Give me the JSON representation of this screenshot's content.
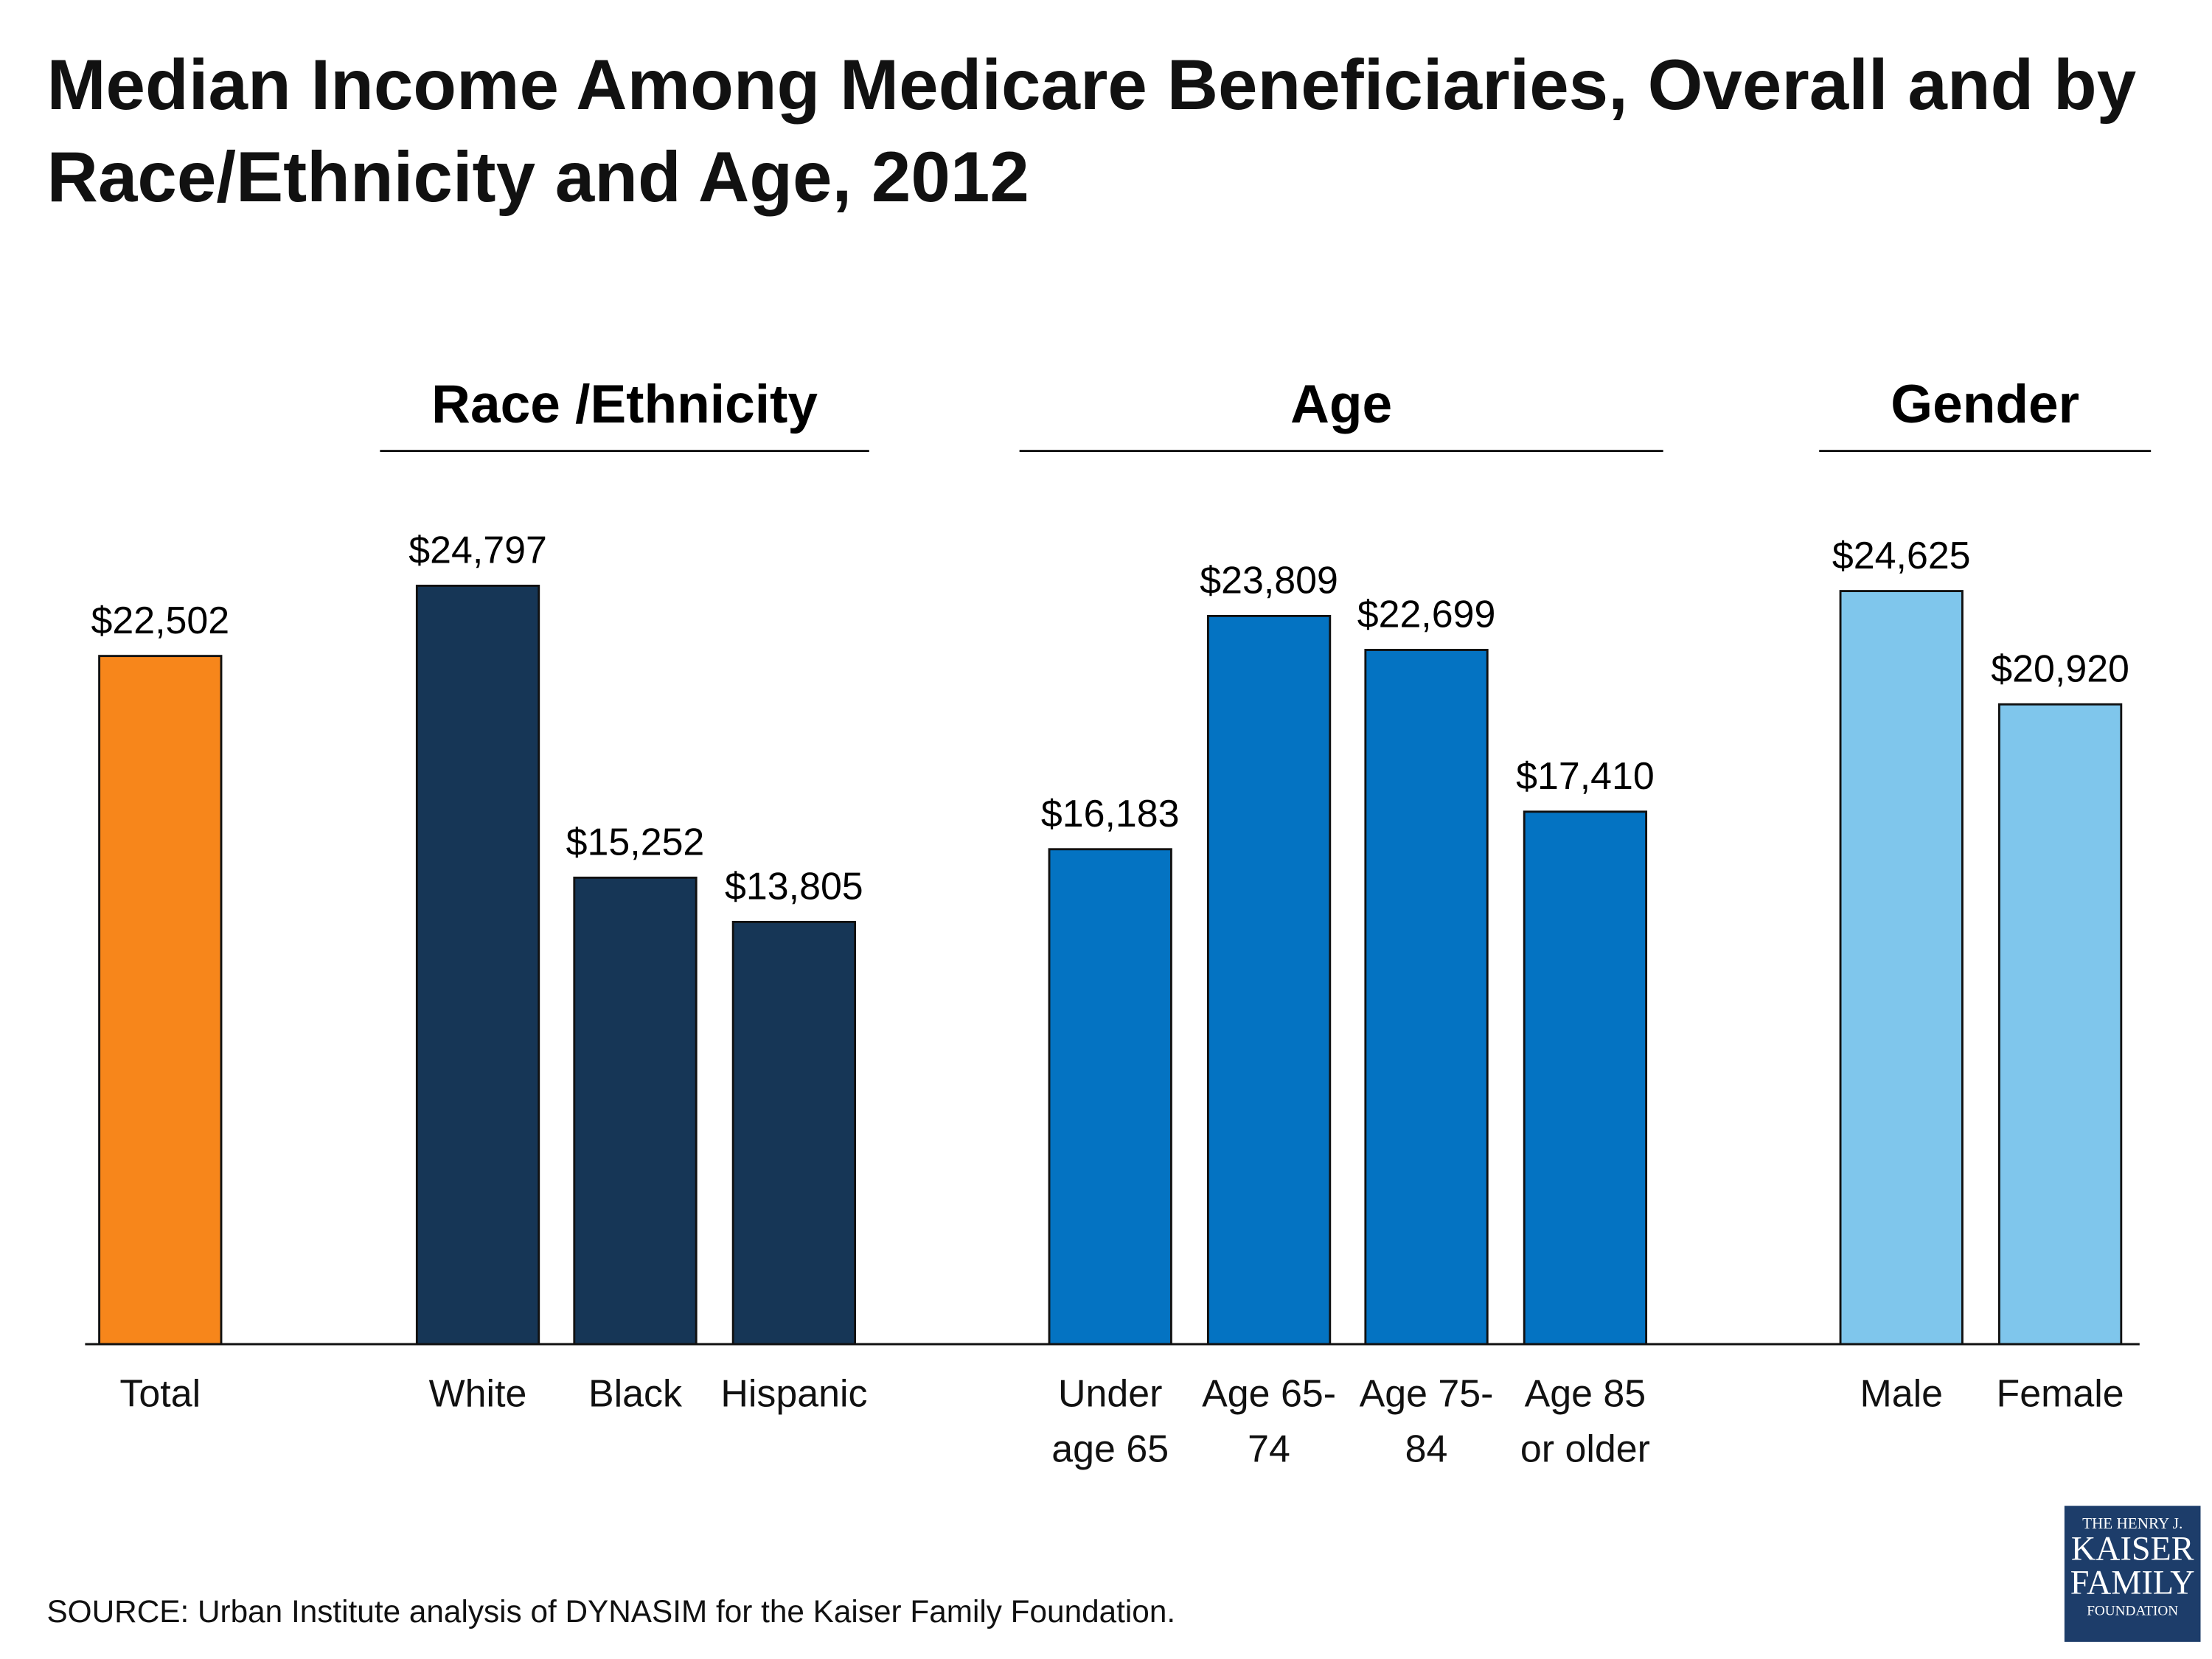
{
  "chart_data": {
    "type": "bar",
    "title": "Median Income Among Medicare Beneficiaries, Overall and by Race/Ethnicity and Age, 2012",
    "groups": [
      {
        "categories": [
          "Total"
        ],
        "values": [
          22502
        ],
        "value_labels": [
          "$22,502"
        ],
        "color": "#f7861b"
      },
      {
        "name": "Race /Ethnicity",
        "categories": [
          "White",
          "Black",
          "Hispanic"
        ],
        "values": [
          24797,
          15252,
          13805
        ],
        "value_labels": [
          "$24,797",
          "$15,252",
          "$13,805"
        ],
        "color": "#163656"
      },
      {
        "name": "Age",
        "categories": [
          "Under age 65",
          "Age 65-74",
          "Age 75-84",
          "Age 85 or older"
        ],
        "values": [
          16183,
          23809,
          22699,
          17410
        ],
        "value_labels": [
          "$16,183",
          "$23,809",
          "$22,699",
          "$17,410"
        ],
        "color": "#0473c2"
      },
      {
        "name": "Gender",
        "categories": [
          "Male",
          "Female"
        ],
        "values": [
          24625,
          20920
        ],
        "value_labels": [
          "$24,625",
          "$20,920"
        ],
        "color": "#7fc6ec"
      }
    ],
    "source": "SOURCE: Urban Institute analysis of DYNASIM for the Kaiser Family Foundation.",
    "logo": [
      "THE HENRY J.",
      "KAISER",
      "FAMILY",
      "FOUNDATION"
    ]
  }
}
